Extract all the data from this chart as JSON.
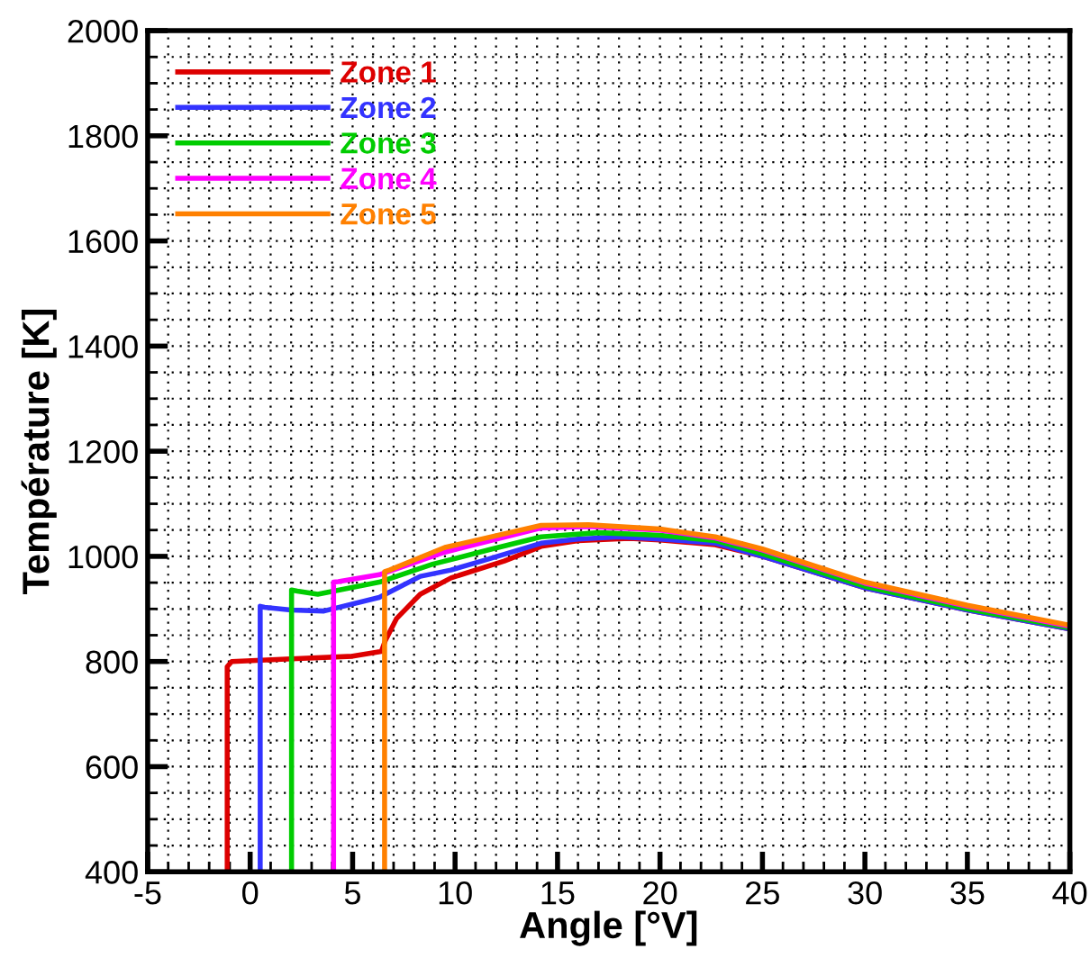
{
  "chart_data": {
    "type": "line",
    "xlabel": "Angle [°V]",
    "ylabel": "Température [K]",
    "xlim": [
      -5,
      40
    ],
    "ylim": [
      400,
      2000
    ],
    "xticks": [
      -5,
      0,
      5,
      10,
      15,
      20,
      25,
      30,
      35,
      40
    ],
    "yticks": [
      400,
      600,
      800,
      1000,
      1200,
      1400,
      1600,
      1800,
      2000
    ],
    "grid": true,
    "legend": "top left",
    "line_style": "solid",
    "marker": "none",
    "series": [
      {
        "name": "Zone 1",
        "color": "#dd0000",
        "x": [
          -1.12,
          -1.12,
          -0.9,
          2,
          5,
          6.4,
          6.6,
          7.15,
          8.3,
          9.8,
          12.4,
          14.2,
          16,
          18.5,
          20,
          22.7,
          25,
          30,
          35,
          40
        ],
        "values": [
          400,
          790,
          800,
          805,
          810,
          819,
          840,
          882,
          928,
          959,
          991,
          1019,
          1030,
          1034,
          1031,
          1022,
          1000,
          940,
          898,
          862
        ]
      },
      {
        "name": "Zone 2",
        "color": "#3333ff",
        "x": [
          0.49,
          0.49,
          0.7,
          2,
          3.6,
          6.3,
          8.3,
          9.8,
          11.3,
          14.2,
          16,
          18,
          20,
          22.7,
          25,
          30,
          35,
          40
        ],
        "values": [
          400,
          905,
          903,
          898,
          896,
          922,
          962,
          974,
          991,
          1025,
          1033,
          1037,
          1033,
          1025,
          1000,
          940,
          898,
          862
        ]
      },
      {
        "name": "Zone 3",
        "color": "#00cc00",
        "x": [
          2.02,
          2.02,
          2.3,
          3.3,
          6.3,
          8.9,
          11.8,
          14.2,
          17,
          20,
          22.7,
          25,
          30,
          35,
          40
        ],
        "values": [
          400,
          936,
          934,
          928,
          951,
          985,
          1014,
          1037,
          1045,
          1040,
          1030,
          1005,
          943,
          900,
          864
        ]
      },
      {
        "name": "Zone 4",
        "color": "#ff00ff",
        "x": [
          4.07,
          4.07,
          4.3,
          6.3,
          9.5,
          14.2,
          16.5,
          20,
          22.7,
          25,
          30,
          35,
          40
        ],
        "values": [
          400,
          951,
          952,
          965,
          1008,
          1054,
          1057,
          1050,
          1035,
          1012,
          949,
          905,
          867
        ]
      },
      {
        "name": "Zone 5",
        "color": "#ff8000",
        "x": [
          6.56,
          6.56,
          6.8,
          9.5,
          14.2,
          16.5,
          20,
          22.7,
          25,
          30,
          35,
          40
        ],
        "values": [
          400,
          971,
          974,
          1017,
          1059,
          1060,
          1052,
          1037,
          1014,
          951,
          907,
          869
        ]
      }
    ]
  }
}
